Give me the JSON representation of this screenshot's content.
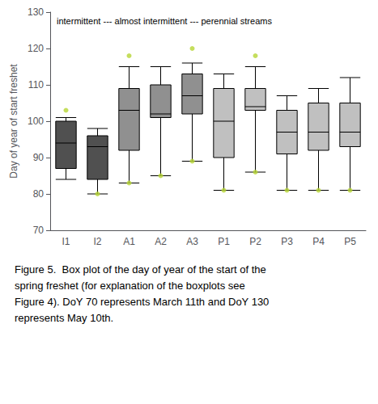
{
  "chart_data": {
    "type": "boxplot",
    "categories": [
      "I1",
      "I2",
      "A1",
      "A2",
      "A3",
      "P1",
      "P2",
      "P3",
      "P4",
      "P5"
    ],
    "values": [
      [
        84,
        87,
        94,
        100,
        101
      ],
      [
        80,
        84,
        93,
        96,
        98
      ],
      [
        83,
        92,
        103,
        109,
        115
      ],
      [
        85,
        101,
        102,
        110,
        115
      ],
      [
        89,
        102,
        107,
        113,
        116
      ],
      [
        81,
        90,
        100,
        109,
        113
      ],
      [
        86,
        103,
        104,
        109,
        115
      ],
      [
        81,
        91,
        97,
        103,
        107
      ],
      [
        81,
        92,
        97,
        105,
        109
      ],
      [
        81,
        93,
        97,
        105,
        112
      ]
    ],
    "fliers": [
      [
        103
      ],
      [
        80
      ],
      [
        83,
        118
      ],
      [
        85
      ],
      [
        89,
        120
      ],
      [
        81
      ],
      [
        86,
        118
      ],
      [
        81
      ],
      [
        81
      ],
      [
        81
      ]
    ],
    "colors": [
      "#505050",
      "#505050",
      "#909090",
      "#909090",
      "#909090",
      "#c0c0c0",
      "#c0c0c0",
      "#c0c0c0",
      "#c0c0c0",
      "#c0c0c0"
    ],
    "y_label": "Day of year of start freshet",
    "ylim": [
      70,
      130
    ],
    "yticks": [
      70,
      80,
      90,
      100,
      110,
      120,
      130
    ],
    "grid": false,
    "annotation": "intermittent --- almost intermittent --- perennial streams",
    "caption": [
      "Figure 5.  Box plot of the day of year of the start of the",
      "spring freshet (for explanation of the boxplots see",
      "Figure 4). DoY 70 represents March 11th and DoY 130",
      "represents May 10th."
    ]
  }
}
